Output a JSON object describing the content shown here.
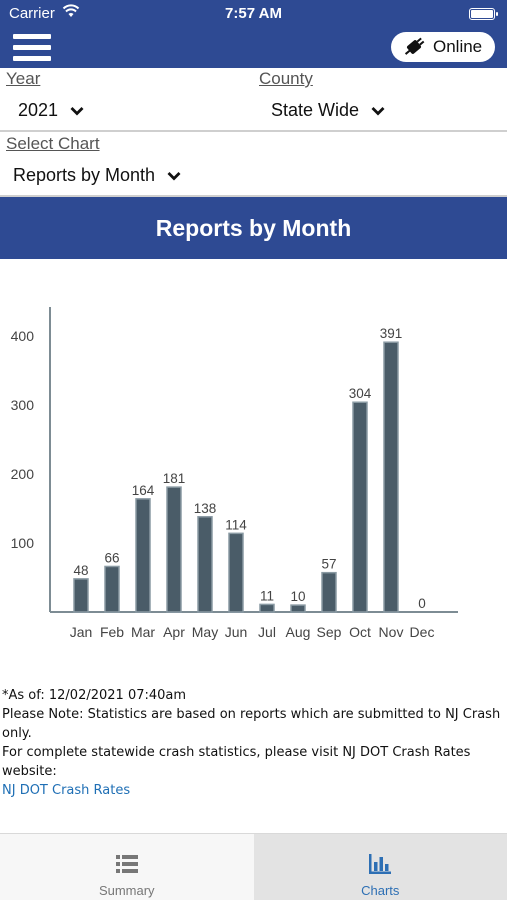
{
  "status_bar": {
    "carrier": "Carrier",
    "time": "7:57 AM"
  },
  "nav": {
    "online_label": "Online"
  },
  "filters": {
    "year_label": "Year",
    "year_value": "2021",
    "county_label": "County",
    "county_value": "State Wide",
    "chart_label": "Select Chart",
    "chart_value": "Reports by Month"
  },
  "chart_title": "Reports by Month",
  "chart_data": {
    "type": "bar",
    "categories": [
      "Jan",
      "Feb",
      "Mar",
      "Apr",
      "May",
      "Jun",
      "Jul",
      "Aug",
      "Sep",
      "Oct",
      "Nov",
      "Dec"
    ],
    "values": [
      48,
      66,
      164,
      181,
      138,
      114,
      11,
      10,
      57,
      304,
      391,
      0
    ],
    "yticks": [
      100,
      200,
      300,
      400
    ],
    "ylim": [
      0,
      400
    ],
    "bar_color": "#4a5c68",
    "show_data_labels": true
  },
  "notes": {
    "as_of": "*As of: 12/02/2021 07:40am",
    "line1": "Please Note: Statistics are based on reports which are submitted to NJ Crash only.",
    "line2": "For complete statewide crash statistics, please visit NJ DOT Crash Rates website:",
    "link": "NJ DOT Crash Rates"
  },
  "tabs": [
    {
      "label": "Summary",
      "icon": "list-icon",
      "active": false
    },
    {
      "label": "Charts",
      "icon": "bar-chart-icon",
      "active": true
    }
  ],
  "colors": {
    "brand": "#2e4a93",
    "active_tab": "#2d6fb4",
    "link": "#1f6fb5"
  }
}
